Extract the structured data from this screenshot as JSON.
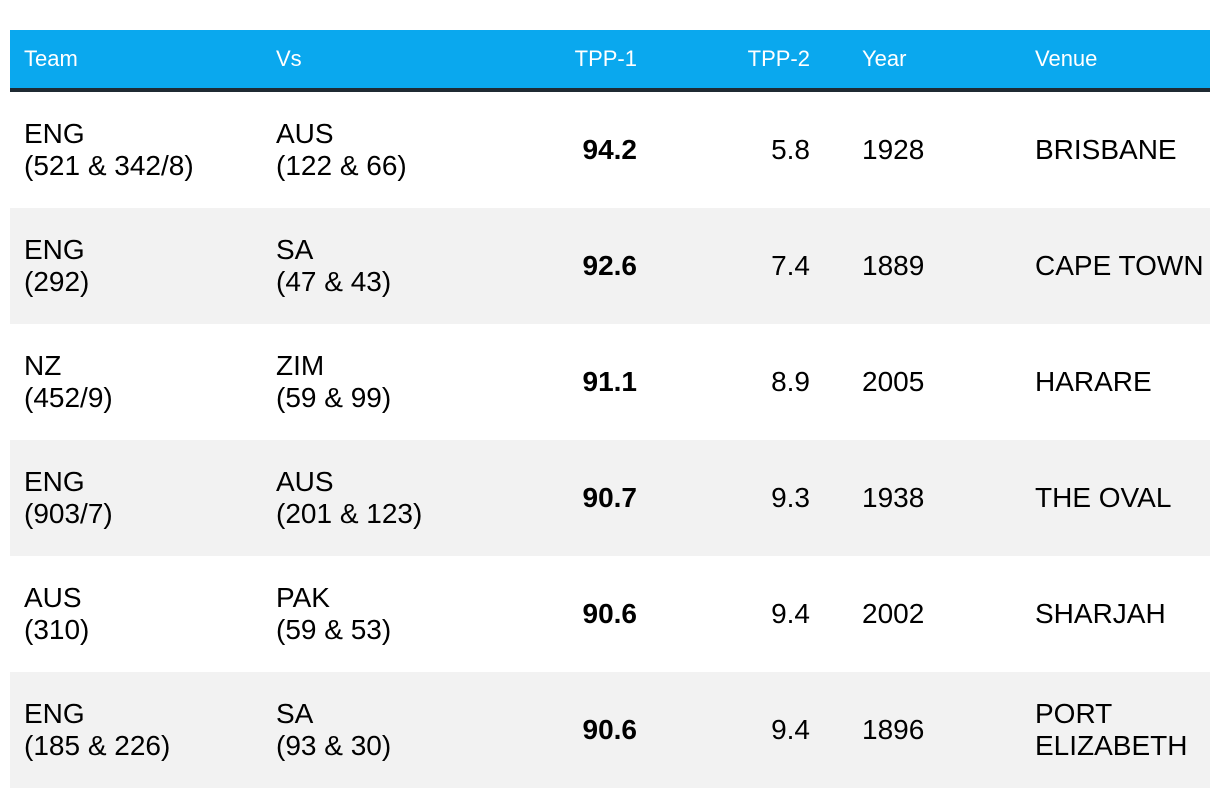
{
  "chart_data": {
    "type": "table",
    "columns": [
      "Team",
      "Vs",
      "TPP-1",
      "TPP-2",
      "Year",
      "Venue"
    ],
    "rows": [
      {
        "team": "ENG",
        "team_score": "(521 & 342/8)",
        "vs": "AUS",
        "vs_score": "(122 & 66)",
        "tpp1": "94.2",
        "tpp2": "5.8",
        "year": "1928",
        "venue": [
          "BRISBANE"
        ]
      },
      {
        "team": "ENG",
        "team_score": "(292)",
        "vs": "SA",
        "vs_score": "(47 & 43)",
        "tpp1": "92.6",
        "tpp2": "7.4",
        "year": "1889",
        "venue": [
          "CAPE TOWN"
        ]
      },
      {
        "team": "NZ",
        "team_score": "(452/9)",
        "vs": "ZIM",
        "vs_score": "(59 & 99)",
        "tpp1": "91.1",
        "tpp2": "8.9",
        "year": "2005",
        "venue": [
          "HARARE"
        ]
      },
      {
        "team": "ENG",
        "team_score": "(903/7)",
        "vs": "AUS",
        "vs_score": "(201 & 123)",
        "tpp1": "90.7",
        "tpp2": "9.3",
        "year": "1938",
        "venue": [
          "THE OVAL"
        ]
      },
      {
        "team": "AUS",
        "team_score": "(310)",
        "vs": "PAK",
        "vs_score": "(59 & 53)",
        "tpp1": "90.6",
        "tpp2": "9.4",
        "year": "2002",
        "venue": [
          "SHARJAH"
        ]
      },
      {
        "team": "ENG",
        "team_score": "(185 & 226)",
        "vs": "SA",
        "vs_score": "(93 & 30)",
        "tpp1": "90.6",
        "tpp2": "9.4",
        "year": "1896",
        "venue": [
          "PORT",
          "ELIZABETH"
        ]
      }
    ],
    "colors": {
      "header_bg": "#0aa8ee",
      "header_text": "#ffffff",
      "header_rule": "#1f2a33",
      "row_alt_bg": "#f2f2f2"
    }
  }
}
